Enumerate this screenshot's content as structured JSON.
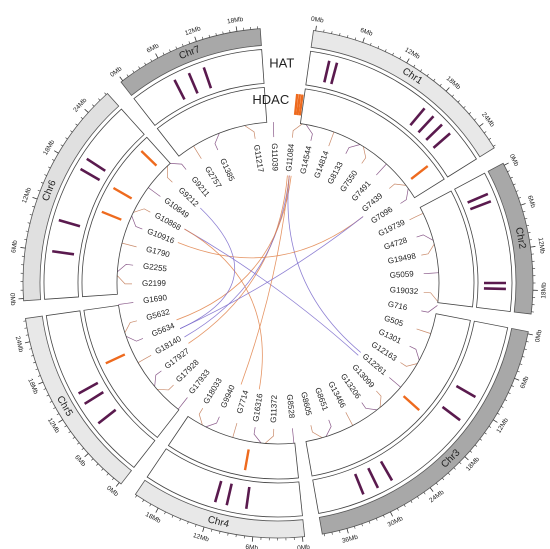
{
  "tracks": {
    "hat": "HAT",
    "hdac": "HDAC"
  },
  "chromosomes": [
    {
      "name": "Chr1",
      "ticks": [
        "0Mb",
        "6Mb",
        "12Mb",
        "18Mb",
        "24Mb"
      ]
    },
    {
      "name": "Chr2",
      "ticks": [
        "0Mb",
        "6Mb",
        "12Mb",
        "18Mb"
      ]
    },
    {
      "name": "Chr3",
      "ticks": [
        "0Mb",
        "6Mb",
        "12Mb",
        "18Mb",
        "24Mb",
        "30Mb",
        "36Mb"
      ]
    },
    {
      "name": "Chr4",
      "ticks": [
        "0Mb",
        "6Mb",
        "12Mb",
        "18Mb"
      ]
    },
    {
      "name": "Chr5",
      "ticks": [
        "0Mb",
        "6Mb",
        "12Mb",
        "18Mb",
        "24Mb"
      ]
    },
    {
      "name": "Chr6",
      "ticks": [
        "0Mb",
        "6Mb",
        "12Mb",
        "18Mb",
        "24Mb"
      ]
    },
    {
      "name": "Chr7",
      "ticks": [
        "0Mb",
        "6Mb",
        "12Mb",
        "18Mb"
      ]
    }
  ],
  "genes": [
    "G11217",
    "G11039",
    "G11084",
    "G14544",
    "G14814",
    "G8133",
    "G7550",
    "G7491",
    "G7439",
    "G7096",
    "G19739",
    "G4728",
    "G19498",
    "G5059",
    "G19032",
    "G716",
    "G505",
    "G1301",
    "G12163",
    "G12261",
    "G13099",
    "G13206",
    "G13466",
    "G8651",
    "G8605",
    "G8528",
    "G11372",
    "G16316",
    "G7714",
    "G9940",
    "G18033",
    "G17933",
    "G17928",
    "G17927",
    "G18140",
    "G5634",
    "G5632",
    "G1690",
    "G2199",
    "G2255",
    "G1790",
    "G10916",
    "G10868",
    "G10849",
    "G9212",
    "G9211",
    "G2757",
    "G1385"
  ]
}
